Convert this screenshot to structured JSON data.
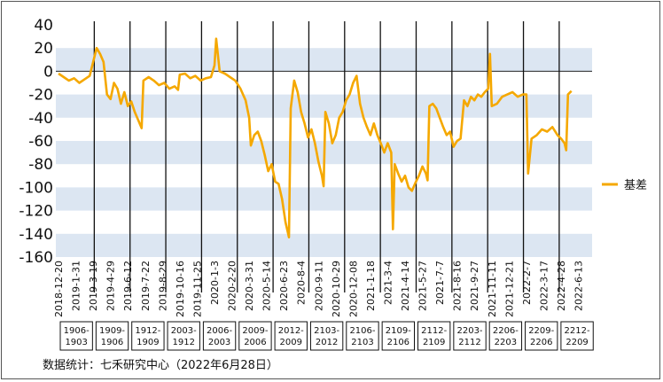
{
  "source_note": "数据统计：七禾研究中心（2022年6月28日）",
  "chart_data": {
    "type": "line",
    "title": "",
    "xlabel": "",
    "ylabel": "",
    "ylim": [
      -160,
      40
    ],
    "yticks": [
      40,
      20,
      0,
      -20,
      -40,
      -60,
      -80,
      -100,
      -120,
      -140,
      -160
    ],
    "grid": "horizontal bands",
    "legend_position": "right",
    "band_color": "#dce6f2",
    "line_color": "#f5a800",
    "x_tick_labels": [
      "2018-12-20",
      "2019-1-31",
      "2019-3-19",
      "2019-4-29",
      "2019-6-12",
      "2019-7-22",
      "2019-8-29",
      "2019-10-16",
      "2019-11-25",
      "2020-1-3",
      "2020-2-20",
      "2020-3-31",
      "2020-5-14",
      "2020-6-23",
      "2020-8-4",
      "2020-9-11",
      "2020-10-29",
      "2020-12-08",
      "2021-1-18",
      "2021-3-4",
      "2021-4-14",
      "2021-5-27",
      "2021-7-7",
      "2021-8-16",
      "2021-9-27",
      "2021-11-11",
      "2021-12-21",
      "2022-2-7",
      "2022-3-17",
      "2022-4-28",
      "2022-6-13"
    ],
    "contract_windows": [
      "1906-1903",
      "1909-1906",
      "1912-1909",
      "2003-1912",
      "2006-2003",
      "2009-2006",
      "2012-2009",
      "2103-2012",
      "2106-2103",
      "2109-2106",
      "2112-2109",
      "2203-2112",
      "2206-2203",
      "2209-2206",
      "2212-2209"
    ],
    "series": [
      {
        "name": "基差",
        "points": [
          [
            0,
            -2
          ],
          [
            0.3,
            -5
          ],
          [
            0.6,
            -8
          ],
          [
            0.9,
            -6
          ],
          [
            1.2,
            -10
          ],
          [
            1.5,
            -7
          ],
          [
            1.8,
            -4
          ],
          [
            2.0,
            8
          ],
          [
            2.2,
            20
          ],
          [
            2.4,
            15
          ],
          [
            2.6,
            8
          ],
          [
            2.8,
            -20
          ],
          [
            3.0,
            -24
          ],
          [
            3.2,
            -10
          ],
          [
            3.4,
            -15
          ],
          [
            3.6,
            -28
          ],
          [
            3.8,
            -18
          ],
          [
            4.0,
            -30
          ],
          [
            4.2,
            -26
          ],
          [
            4.4,
            -35
          ],
          [
            4.6,
            -42
          ],
          [
            4.8,
            -49
          ],
          [
            4.9,
            -8
          ],
          [
            5.2,
            -5
          ],
          [
            5.5,
            -8
          ],
          [
            5.8,
            -12
          ],
          [
            6.1,
            -10
          ],
          [
            6.4,
            -15
          ],
          [
            6.7,
            -13
          ],
          [
            6.9,
            -16
          ],
          [
            7.0,
            -3
          ],
          [
            7.3,
            -2
          ],
          [
            7.6,
            -6
          ],
          [
            7.9,
            -4
          ],
          [
            8.2,
            -8
          ],
          [
            8.5,
            -6
          ],
          [
            8.8,
            -5
          ],
          [
            9.0,
            5
          ],
          [
            9.1,
            28
          ],
          [
            9.3,
            0
          ],
          [
            9.6,
            -2
          ],
          [
            9.9,
            -5
          ],
          [
            10.2,
            -8
          ],
          [
            10.5,
            -15
          ],
          [
            10.8,
            -25
          ],
          [
            11.0,
            -40
          ],
          [
            11.1,
            -64
          ],
          [
            11.3,
            -55
          ],
          [
            11.5,
            -52
          ],
          [
            11.7,
            -60
          ],
          [
            11.9,
            -72
          ],
          [
            12.1,
            -86
          ],
          [
            12.3,
            -80
          ],
          [
            12.5,
            -95
          ],
          [
            12.7,
            -97
          ],
          [
            12.9,
            -110
          ],
          [
            13.1,
            -130
          ],
          [
            13.3,
            -143
          ],
          [
            13.4,
            -32
          ],
          [
            13.6,
            -8
          ],
          [
            13.8,
            -18
          ],
          [
            14.0,
            -35
          ],
          [
            14.2,
            -45
          ],
          [
            14.4,
            -57
          ],
          [
            14.6,
            -50
          ],
          [
            14.8,
            -62
          ],
          [
            15.0,
            -78
          ],
          [
            15.2,
            -90
          ],
          [
            15.3,
            -99
          ],
          [
            15.4,
            -35
          ],
          [
            15.6,
            -45
          ],
          [
            15.8,
            -62
          ],
          [
            16.0,
            -55
          ],
          [
            16.2,
            -40
          ],
          [
            16.4,
            -35
          ],
          [
            16.6,
            -25
          ],
          [
            16.8,
            -20
          ],
          [
            17.0,
            -10
          ],
          [
            17.2,
            -4
          ],
          [
            17.4,
            -28
          ],
          [
            17.6,
            -40
          ],
          [
            17.8,
            -48
          ],
          [
            18.0,
            -55
          ],
          [
            18.2,
            -45
          ],
          [
            18.4,
            -55
          ],
          [
            18.6,
            -62
          ],
          [
            18.8,
            -70
          ],
          [
            19.0,
            -62
          ],
          [
            19.2,
            -70
          ],
          [
            19.3,
            -136
          ],
          [
            19.4,
            -80
          ],
          [
            19.6,
            -88
          ],
          [
            19.8,
            -95
          ],
          [
            20.0,
            -90
          ],
          [
            20.2,
            -100
          ],
          [
            20.4,
            -103
          ],
          [
            20.6,
            -96
          ],
          [
            20.8,
            -90
          ],
          [
            21.0,
            -82
          ],
          [
            21.2,
            -88
          ],
          [
            21.3,
            -94
          ],
          [
            21.4,
            -30
          ],
          [
            21.6,
            -28
          ],
          [
            21.8,
            -32
          ],
          [
            22.0,
            -40
          ],
          [
            22.2,
            -48
          ],
          [
            22.4,
            -55
          ],
          [
            22.6,
            -52
          ],
          [
            22.8,
            -65
          ],
          [
            23.0,
            -60
          ],
          [
            23.2,
            -58
          ],
          [
            23.4,
            -25
          ],
          [
            23.6,
            -30
          ],
          [
            23.8,
            -22
          ],
          [
            24.0,
            -25
          ],
          [
            24.2,
            -20
          ],
          [
            24.4,
            -22
          ],
          [
            24.6,
            -18
          ],
          [
            24.8,
            -15
          ],
          [
            24.9,
            15
          ],
          [
            25.0,
            -30
          ],
          [
            25.3,
            -28
          ],
          [
            25.6,
            -22
          ],
          [
            25.9,
            -20
          ],
          [
            26.2,
            -18
          ],
          [
            26.5,
            -22
          ],
          [
            26.8,
            -20
          ],
          [
            27.0,
            -20
          ],
          [
            27.1,
            -88
          ],
          [
            27.3,
            -58
          ],
          [
            27.6,
            -55
          ],
          [
            27.9,
            -50
          ],
          [
            28.2,
            -52
          ],
          [
            28.5,
            -48
          ],
          [
            28.8,
            -55
          ],
          [
            29.0,
            -58
          ],
          [
            29.2,
            -62
          ],
          [
            29.3,
            -68
          ],
          [
            29.4,
            -20
          ],
          [
            29.6,
            -17
          ]
        ]
      }
    ]
  }
}
